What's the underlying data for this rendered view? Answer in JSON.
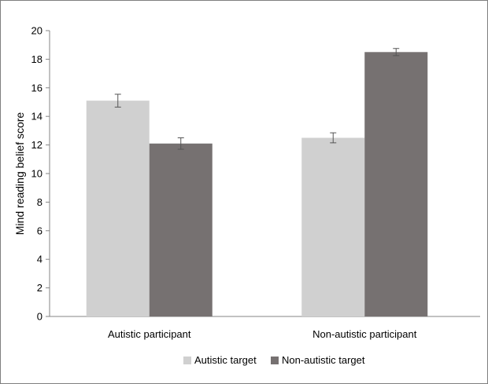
{
  "chart_data": {
    "type": "bar",
    "title": "",
    "xlabel": "",
    "ylabel": "Mind reading belief score",
    "ylim": [
      0,
      20
    ],
    "yticks": [
      0,
      2,
      4,
      6,
      8,
      10,
      12,
      14,
      16,
      18,
      20
    ],
    "categories": [
      "Autistic participant",
      "Non-autistic participant"
    ],
    "series": [
      {
        "name": "Autistic target",
        "color": "#d0d0d0",
        "values": [
          15.1,
          12.5
        ],
        "errors": [
          0.45,
          0.35
        ]
      },
      {
        "name": "Non-autistic target",
        "color": "#767171",
        "values": [
          12.1,
          18.5
        ],
        "errors": [
          0.4,
          0.25
        ]
      }
    ],
    "grid": false,
    "error_bars": true,
    "legend_position": "bottom"
  }
}
